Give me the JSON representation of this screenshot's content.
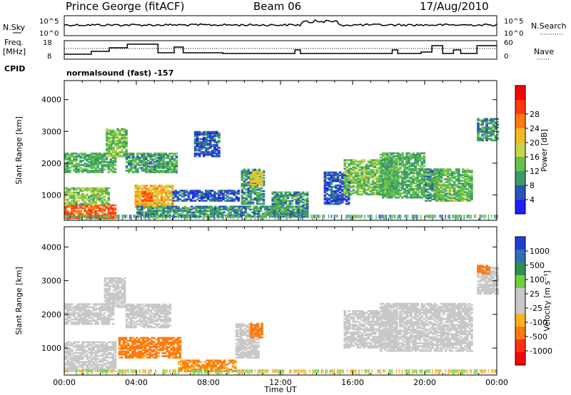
{
  "header": {
    "station": "Prince George (fitACF)",
    "beam": "Beam 06",
    "date": "17/Aug/2010"
  },
  "top_panel": {
    "left_label": "N.Sky",
    "right_label": "N.Search",
    "left_ticks": [
      "10^5",
      "10^0"
    ],
    "right_ticks": [
      "10^5",
      "10^0"
    ]
  },
  "freq_panel": {
    "left_label_1": "Freq.",
    "left_label_2": "[MHz]",
    "right_label": "Nave",
    "left_ticks": [
      "18",
      "8"
    ],
    "right_ticks": [
      "60",
      "0"
    ],
    "cpid_label": "CPID",
    "cpid_text": "normalsound (fast) -157"
  },
  "colors": {
    "power_scale": [
      "#1f1fff",
      "#2a55b8",
      "#3c9a6a",
      "#66c24a",
      "#c9d24a",
      "#f5b820",
      "#ff7a10",
      "#ff3a10",
      "#ff0000"
    ],
    "velocity_scale": [
      "#1f3fd0",
      "#2f6fb8",
      "#2f8f4f",
      "#6fcf3f",
      "#c8c8c8",
      "#c8c8c8",
      "#ffb020",
      "#ff7a10",
      "#ff3010",
      "#ff0000"
    ]
  },
  "chart_data": [
    {
      "type": "heatmap",
      "title": "",
      "xlabel": "Time UT",
      "ylabel": "Slant Range [km]",
      "x_ticks": [
        "00:00",
        "04:00",
        "08:00",
        "12:00",
        "16:00",
        "20:00",
        "00:00"
      ],
      "y_ticks": [
        "1000",
        "2000",
        "3000",
        "4000"
      ],
      "ylim": [
        200,
        4600
      ],
      "colorbar": {
        "label": "Power [dB]",
        "ticks": [
          "4",
          "8",
          "12",
          "16",
          "20",
          "24",
          "28"
        ]
      },
      "regions": [
        {
          "t0": 0.0,
          "t1": 2.8,
          "r0": 250,
          "r1": 700,
          "v": 28
        },
        {
          "t0": 0.0,
          "t1": 2.5,
          "r0": 700,
          "r1": 1200,
          "v": 15
        },
        {
          "t0": 0.0,
          "t1": 2.8,
          "r0": 1700,
          "r1": 2300,
          "v": 12
        },
        {
          "t0": 2.3,
          "t1": 3.5,
          "r0": 2200,
          "r1": 3100,
          "v": 14
        },
        {
          "t0": 3.4,
          "t1": 6.2,
          "r0": 1700,
          "r1": 2300,
          "v": 11
        },
        {
          "t0": 3.9,
          "t1": 6.0,
          "r0": 600,
          "r1": 1300,
          "v": 22
        },
        {
          "t0": 4.0,
          "t1": 13.2,
          "r0": 300,
          "r1": 650,
          "v": 10
        },
        {
          "t0": 4.3,
          "t1": 4.9,
          "r0": 800,
          "r1": 1100,
          "v": 28
        },
        {
          "t0": 6.0,
          "t1": 9.6,
          "r0": 800,
          "r1": 1150,
          "v": 6
        },
        {
          "t0": 7.2,
          "t1": 8.6,
          "r0": 2200,
          "r1": 3000,
          "v": 6
        },
        {
          "t0": 9.8,
          "t1": 11.0,
          "r0": 700,
          "r1": 1800,
          "v": 10
        },
        {
          "t0": 10.3,
          "t1": 10.9,
          "r0": 1300,
          "r1": 1750,
          "v": 20
        },
        {
          "t0": 11.5,
          "t1": 13.5,
          "r0": 300,
          "r1": 1100,
          "v": 10
        },
        {
          "t0": 14.4,
          "t1": 15.8,
          "r0": 700,
          "r1": 1700,
          "v": 6
        },
        {
          "t0": 15.5,
          "t1": 18.4,
          "r0": 1000,
          "r1": 2100,
          "v": 14
        },
        {
          "t0": 17.5,
          "t1": 20.0,
          "r0": 900,
          "r1": 2300,
          "v": 12
        },
        {
          "t0": 20.0,
          "t1": 20.8,
          "r0": 800,
          "r1": 1800,
          "v": 10
        },
        {
          "t0": 20.5,
          "t1": 22.6,
          "r0": 800,
          "r1": 1800,
          "v": 13
        },
        {
          "t0": 22.9,
          "t1": 24.0,
          "r0": 2700,
          "r1": 3400,
          "v": 10
        }
      ]
    },
    {
      "type": "heatmap",
      "title": "",
      "xlabel": "Time UT",
      "ylabel": "Slant Range [km]",
      "x_ticks": [
        "00:00",
        "04:00",
        "08:00",
        "12:00",
        "16:00",
        "20:00",
        "00:00"
      ],
      "y_ticks": [
        "1000",
        "2000",
        "3000",
        "4000"
      ],
      "ylim": [
        200,
        4600
      ],
      "colorbar": {
        "label": "Velocity [m s⁻¹]",
        "ticks": [
          "1000",
          "500",
          "100",
          "25",
          "-25",
          "-100",
          "-500",
          "-1000"
        ]
      },
      "regions": [
        {
          "t0": 0.0,
          "t1": 2.8,
          "r0": 300,
          "r1": 1200,
          "v": 0
        },
        {
          "t0": 0.0,
          "t1": 2.7,
          "r0": 1700,
          "r1": 2300,
          "v": 0
        },
        {
          "t0": 2.2,
          "t1": 3.4,
          "r0": 2200,
          "r1": 3100,
          "v": 0
        },
        {
          "t0": 3.4,
          "t1": 5.9,
          "r0": 1600,
          "r1": 2300,
          "v": 0
        },
        {
          "t0": 3.0,
          "t1": 6.4,
          "r0": 700,
          "r1": 1300,
          "v": -150
        },
        {
          "t0": 6.3,
          "t1": 9.5,
          "r0": 300,
          "r1": 650,
          "v": -120
        },
        {
          "t0": 9.5,
          "t1": 10.8,
          "r0": 700,
          "r1": 1700,
          "v": 0
        },
        {
          "t0": 10.3,
          "t1": 10.9,
          "r0": 1300,
          "r1": 1750,
          "v": -200
        },
        {
          "t0": 15.5,
          "t1": 18.5,
          "r0": 1000,
          "r1": 2100,
          "v": 0
        },
        {
          "t0": 17.5,
          "t1": 22.6,
          "r0": 900,
          "r1": 2300,
          "v": 0
        },
        {
          "t0": 22.9,
          "t1": 24.0,
          "r0": 2600,
          "r1": 3400,
          "v": 0
        },
        {
          "t0": 22.9,
          "t1": 23.6,
          "r0": 3200,
          "r1": 3450,
          "v": -300
        }
      ]
    }
  ]
}
